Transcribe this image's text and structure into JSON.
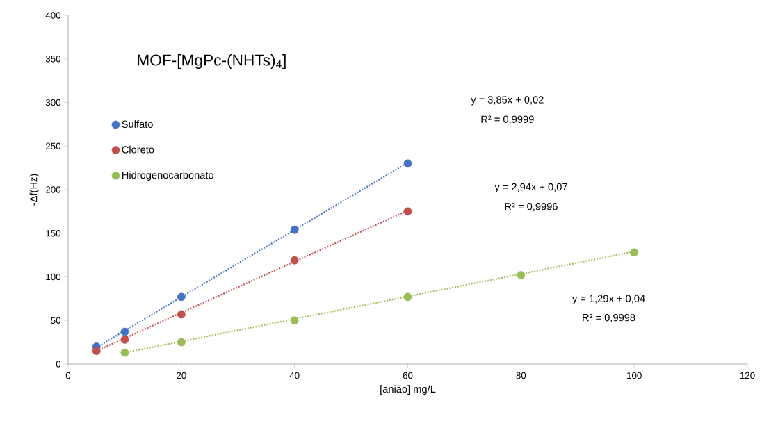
{
  "chart_data": {
    "type": "scatter",
    "title": "MOF-[MgPc-(NHTs)$_{4}$]",
    "xlabel": "[anião] mg/L",
    "ylabel": "-Δf(Hz)",
    "xlim": [
      0,
      120
    ],
    "xticks": [
      0,
      20,
      40,
      60,
      80,
      100,
      120
    ],
    "ylim": [
      0,
      400
    ],
    "yticks": [
      0,
      50,
      100,
      150,
      200,
      250,
      300,
      350,
      400
    ],
    "marker": "circle",
    "legend": "top left",
    "grid": false,
    "series": [
      {
        "name": "Sulfato",
        "color": "#4472c4",
        "x": [
          5,
          10,
          20,
          40,
          60
        ],
        "values": [
          20,
          37,
          77,
          154,
          230
        ]
      },
      {
        "name": "Cloreto",
        "color": "#c0504d",
        "x": [
          5,
          10,
          20,
          40,
          60
        ],
        "values": [
          15,
          28,
          57,
          119,
          175
        ]
      },
      {
        "name": "Hidrogenocarbonato",
        "color": "#9bbb59",
        "x": [
          10,
          20,
          40,
          60,
          80,
          100
        ],
        "values": [
          13,
          25,
          50,
          77,
          102,
          128
        ]
      },
      {
        "type": "line",
        "line_style": "dotted",
        "marker": "none",
        "color": "#4472c4",
        "x": [
          5,
          60
        ],
        "values": [
          19,
          231
        ]
      },
      {
        "type": "line",
        "line_style": "dotted",
        "marker": "none",
        "color": "#c0504d",
        "x": [
          5,
          60
        ],
        "values": [
          15,
          176
        ]
      },
      {
        "type": "line",
        "line_style": "dotted",
        "marker": "none",
        "color": "#9bbb59",
        "x": [
          10,
          100
        ],
        "values": [
          13,
          129
        ]
      }
    ],
    "annotations": [
      "y = 3,85x + 0,02",
      "R² = 0,9999",
      "y = 2,94x + 0,07",
      "R² = 0,9996",
      "y = 1,29x + 0,04",
      "R² = 0,9998"
    ]
  }
}
